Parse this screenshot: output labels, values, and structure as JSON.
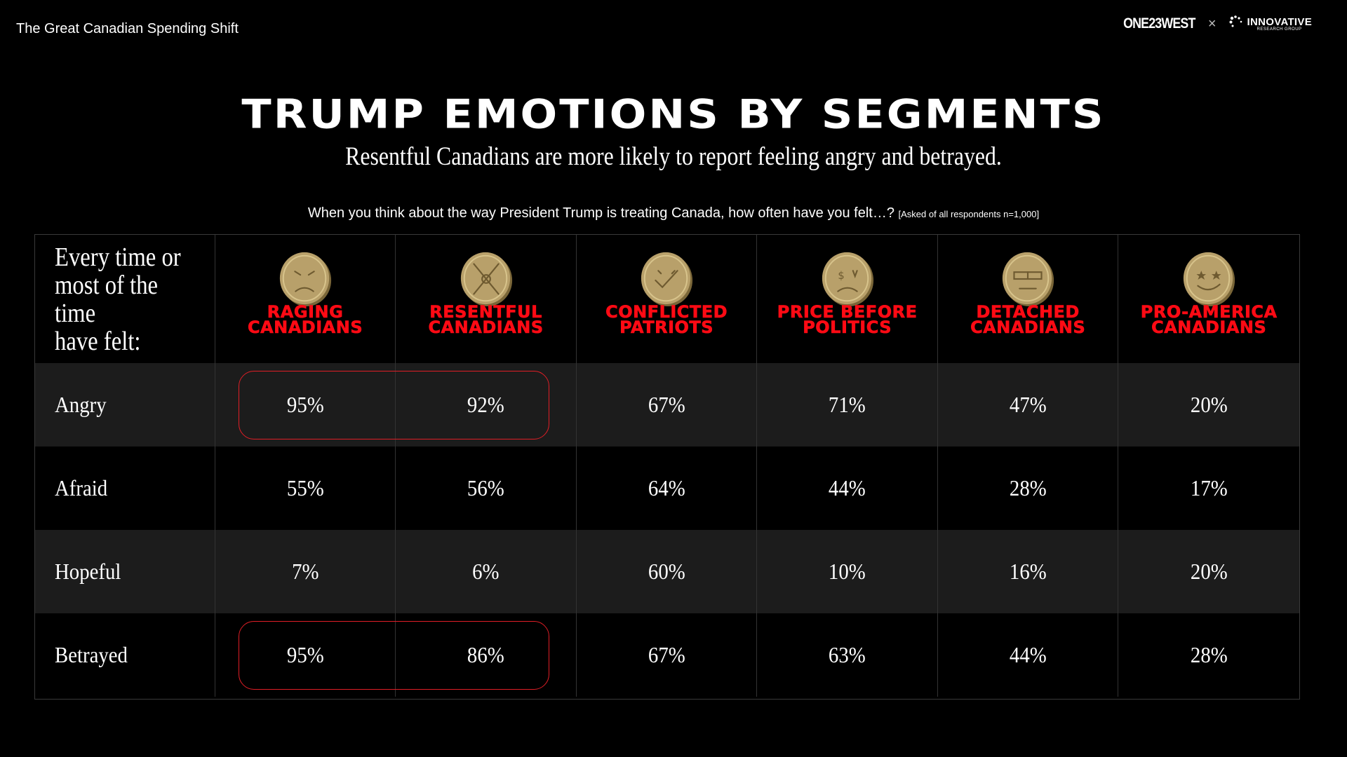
{
  "header": {
    "deck_title": "The Great Canadian Spending Shift",
    "logo_left": "ONE23WEST",
    "logo_separator": "×",
    "logo_right_main": "INNOVATIVE",
    "logo_right_sub": "RESEARCH GROUP"
  },
  "title": "TRUMP EMOTIONS BY SEGMENTS",
  "subtitle": "Resentful Canadians are more likely to report feeling angry and betrayed.",
  "question": {
    "text": "When you think about the way President Trump is treating Canada, how often have you felt…?",
    "note": "[Asked of all respondents n=1,000]"
  },
  "table": {
    "corner_label": "Every time or\nmost of the time\nhave felt:",
    "segments": [
      {
        "name": "RAGING\nCANADIANS",
        "icon": "angry-coin-icon"
      },
      {
        "name": "RESENTFUL\nCANADIANS",
        "icon": "frowning-coin-icon"
      },
      {
        "name": "CONFLICTED\nPATRIOTS",
        "icon": "check-coin-icon"
      },
      {
        "name": "PRICE BEFORE\nPOLITICS",
        "icon": "dollar-coin-icon"
      },
      {
        "name": "DETACHED\nCANADIANS",
        "icon": "sunglasses-coin-icon"
      },
      {
        "name": "PRO-AMERICA\nCANADIANS",
        "icon": "star-eyes-coin-icon"
      }
    ],
    "rows": [
      {
        "label": "Angry",
        "values": [
          "95%",
          "92%",
          "67%",
          "71%",
          "47%",
          "20%"
        ]
      },
      {
        "label": "Afraid",
        "values": [
          "55%",
          "56%",
          "64%",
          "44%",
          "28%",
          "17%"
        ]
      },
      {
        "label": "Hopeful",
        "values": [
          "7%",
          "6%",
          "60%",
          "10%",
          "16%",
          "20%"
        ]
      },
      {
        "label": "Betrayed",
        "values": [
          "95%",
          "86%",
          "67%",
          "63%",
          "44%",
          "28%"
        ]
      }
    ],
    "highlighted_rows": [
      "Angry",
      "Betrayed"
    ]
  },
  "colors": {
    "background": "#000000",
    "row_alt": "#1c1c1c",
    "segment_red": "#ff0a14",
    "highlight_border": "#e01e26",
    "coin_gold": "#b8a06a"
  }
}
